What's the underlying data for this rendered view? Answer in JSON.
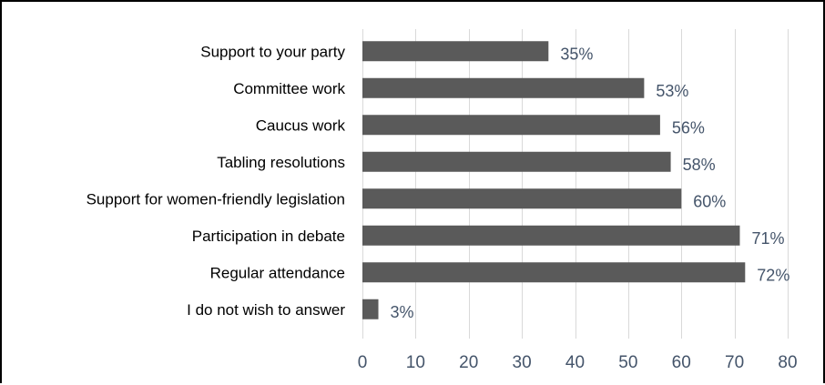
{
  "chart_data": {
    "type": "bar",
    "orientation": "horizontal",
    "categories": [
      "Support to your party",
      "Committee work",
      "Caucus work",
      "Tabling resolutions",
      "Support for women-friendly legislation",
      "Participation in debate",
      "Regular attendance",
      "I do not wish to answer"
    ],
    "values": [
      35,
      53,
      56,
      58,
      60,
      71,
      72,
      3
    ],
    "value_labels": [
      "35%",
      "53%",
      "56%",
      "58%",
      "60%",
      "71%",
      "72%",
      "3%"
    ],
    "xlim": [
      0,
      80
    ],
    "xticks": [
      0,
      10,
      20,
      30,
      40,
      50,
      60,
      70,
      80
    ],
    "xtick_labels": [
      "0",
      "10",
      "20",
      "30",
      "40",
      "50",
      "60",
      "70",
      "80"
    ],
    "title": "",
    "xlabel": "",
    "ylabel": "",
    "grid": "vertical",
    "legend": "none",
    "colors": {
      "bar": "#5a5a5a",
      "grid": "#d9d9d9",
      "data_label": "#44546a",
      "tick_label": "#44546a",
      "category_label": "#000000"
    }
  }
}
